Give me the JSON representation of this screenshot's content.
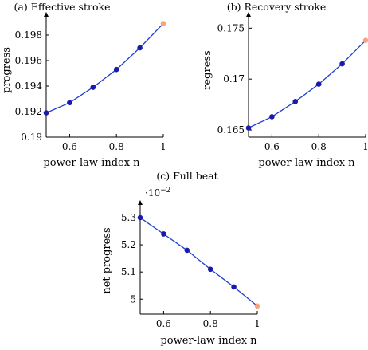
{
  "chart_data": [
    {
      "type": "line",
      "title": "(a) Effective stroke",
      "xlabel": "power-law index n",
      "ylabel": "progress",
      "xlim": [
        0.5,
        1.0
      ],
      "ylim": [
        0.19,
        0.1995
      ],
      "xticks": [
        0.6,
        0.8,
        1.0
      ],
      "xtick_labels": [
        "0.6",
        "0.8",
        "1"
      ],
      "yticks": [
        0.19,
        0.192,
        0.194,
        0.196,
        0.198
      ],
      "ytick_labels": [
        "0.19",
        "0.192",
        "0.194",
        "0.196",
        "0.198"
      ],
      "series": [
        {
          "x": [
            0.5,
            0.6,
            0.7,
            0.8,
            0.9,
            1.0
          ],
          "y": [
            0.1919,
            0.1927,
            0.1939,
            0.1953,
            0.197,
            0.1989
          ],
          "color": "#1a1aaa"
        }
      ],
      "highlight_color": "#f4a582",
      "line_color": "#1f3fcf",
      "grid": false
    },
    {
      "type": "line",
      "title": "(b) Recovery stroke",
      "xlabel": "power-law index n",
      "ylabel": "regress",
      "xlim": [
        0.5,
        1.0
      ],
      "ylim": [
        0.1643,
        0.1762
      ],
      "xticks": [
        0.6,
        0.8,
        1.0
      ],
      "xtick_labels": [
        "0.6",
        "0.8",
        "1"
      ],
      "yticks": [
        0.165,
        0.17,
        0.175
      ],
      "ytick_labels": [
        "0.165",
        "0.17",
        "0.175"
      ],
      "series": [
        {
          "x": [
            0.5,
            0.6,
            0.7,
            0.8,
            0.9,
            1.0
          ],
          "y": [
            0.1652,
            0.1663,
            0.1678,
            0.1695,
            0.1715,
            0.1738
          ],
          "color": "#1a1aaa"
        }
      ],
      "highlight_color": "#f4a582",
      "line_color": "#1f3fcf",
      "grid": false
    },
    {
      "type": "line",
      "title": "(c) Full beat",
      "xlabel": "power-law index n",
      "ylabel": "net progress",
      "scale_label": "·10",
      "scale_exponent": "−2",
      "xlim": [
        0.5,
        1.0
      ],
      "ylim": [
        4.945,
        5.35
      ],
      "xticks": [
        0.6,
        0.8,
        1.0
      ],
      "xtick_labels": [
        "0.6",
        "0.8",
        "1"
      ],
      "yticks": [
        5.0,
        5.1,
        5.2,
        5.3
      ],
      "ytick_labels": [
        "5",
        "5.1",
        "5.2",
        "5.3"
      ],
      "series": [
        {
          "x": [
            0.5,
            0.6,
            0.7,
            0.8,
            0.9,
            1.0
          ],
          "y": [
            5.3,
            5.24,
            5.18,
            5.11,
            5.045,
            4.975
          ],
          "color": "#1a1aaa"
        }
      ],
      "highlight_color": "#f4a582",
      "line_color": "#1f3fcf",
      "grid": false
    }
  ]
}
